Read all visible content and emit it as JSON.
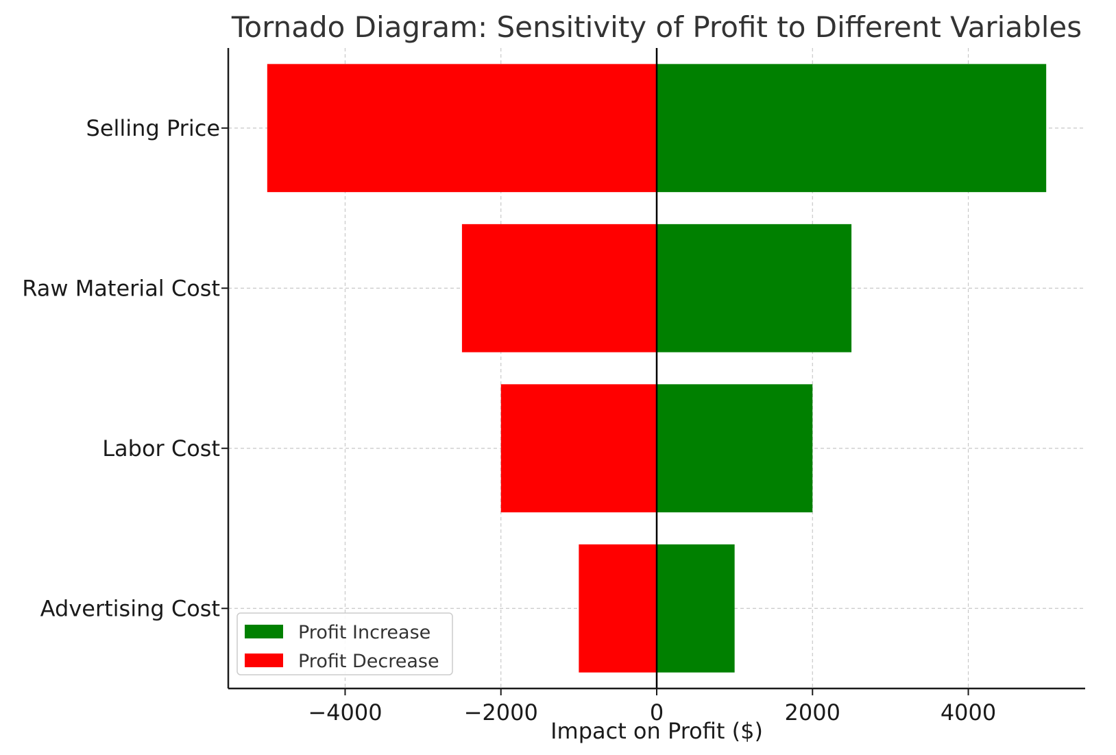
{
  "chart_data": {
    "type": "bar",
    "orientation": "horizontal",
    "title": "Tornado Diagram: Sensitivity of Profit to Different Variables",
    "xlabel": "Impact on Profit ($)",
    "ylabel": "",
    "categories": [
      "Selling Price",
      "Raw Material Cost",
      "Labor Cost",
      "Advertising Cost"
    ],
    "series": [
      {
        "name": "Profit Increase",
        "color": "#008000",
        "values": [
          5000,
          2500,
          2000,
          1000
        ]
      },
      {
        "name": "Profit Decrease",
        "color": "#ff0000",
        "values": [
          -5000,
          -2500,
          -2000,
          -1000
        ]
      }
    ],
    "xlim": [
      -5500,
      5500
    ],
    "xticks": [
      -4000,
      -2000,
      0,
      2000,
      4000
    ],
    "xtick_labels": [
      "−4000",
      "−2000",
      "0",
      "2000",
      "4000"
    ],
    "grid": true,
    "legend_position": "lower-left"
  }
}
